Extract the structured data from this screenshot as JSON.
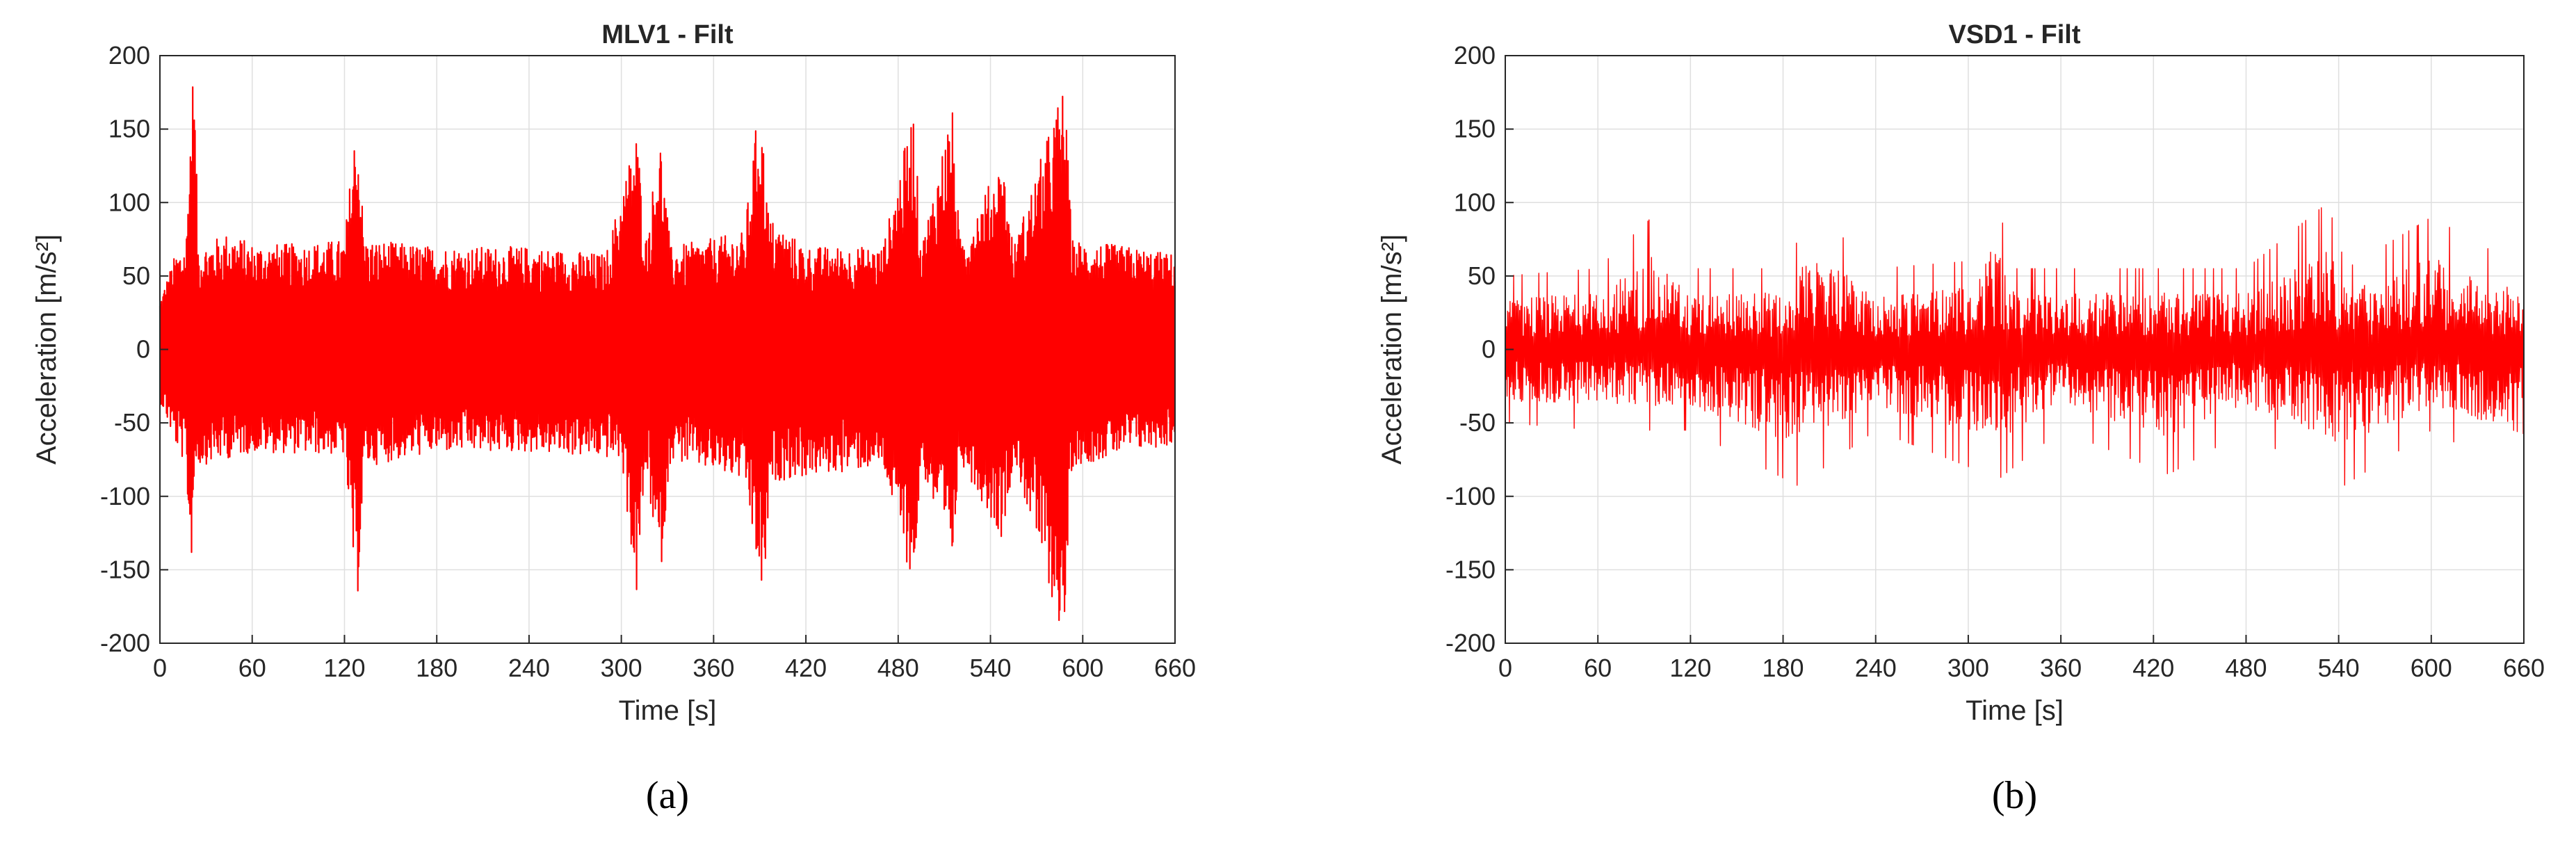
{
  "chart_data": [
    {
      "type": "line",
      "title": "MLV1 - Filt",
      "xlabel": "Time [s]",
      "ylabel": "Acceleration [m/s²]",
      "caption": "(a)",
      "xlim": [
        0,
        660
      ],
      "ylim": [
        -200,
        200
      ],
      "xticks": [
        "0",
        "60",
        "120",
        "180",
        "240",
        "300",
        "360",
        "420",
        "480",
        "540",
        "600",
        "660"
      ],
      "yticks": [
        "200",
        "150",
        "100",
        "50",
        "0",
        "-50",
        "-100",
        "-150",
        "-200"
      ],
      "grid": true,
      "color": "#ff0000",
      "series": [
        {
          "envelope_upper": [
            {
              "x": 0,
              "y": 35
            },
            {
              "x": 10,
              "y": 65
            },
            {
              "x": 17,
              "y": 75
            },
            {
              "x": 20,
              "y": 160
            },
            {
              "x": 22,
              "y": 200
            },
            {
              "x": 25,
              "y": 70
            },
            {
              "x": 45,
              "y": 80
            },
            {
              "x": 60,
              "y": 72
            },
            {
              "x": 90,
              "y": 72
            },
            {
              "x": 120,
              "y": 75
            },
            {
              "x": 128,
              "y": 163
            },
            {
              "x": 133,
              "y": 75
            },
            {
              "x": 180,
              "y": 70
            },
            {
              "x": 240,
              "y": 70
            },
            {
              "x": 290,
              "y": 65
            },
            {
              "x": 310,
              "y": 150
            },
            {
              "x": 316,
              "y": 75
            },
            {
              "x": 325,
              "y": 148
            },
            {
              "x": 332,
              "y": 70
            },
            {
              "x": 380,
              "y": 80
            },
            {
              "x": 390,
              "y": 175
            },
            {
              "x": 396,
              "y": 90
            },
            {
              "x": 420,
              "y": 70
            },
            {
              "x": 470,
              "y": 70
            },
            {
              "x": 490,
              "y": 165
            },
            {
              "x": 495,
              "y": 70
            },
            {
              "x": 515,
              "y": 168
            },
            {
              "x": 520,
              "y": 75
            },
            {
              "x": 548,
              "y": 130
            },
            {
              "x": 555,
              "y": 70
            },
            {
              "x": 588,
              "y": 182
            },
            {
              "x": 593,
              "y": 75
            },
            {
              "x": 630,
              "y": 70
            },
            {
              "x": 660,
              "y": 65
            }
          ],
          "envelope_lower": [
            {
              "x": 0,
              "y": -35
            },
            {
              "x": 10,
              "y": -65
            },
            {
              "x": 17,
              "y": -80
            },
            {
              "x": 20,
              "y": -155
            },
            {
              "x": 23,
              "y": -80
            },
            {
              "x": 60,
              "y": -70
            },
            {
              "x": 120,
              "y": -72
            },
            {
              "x": 128,
              "y": -180
            },
            {
              "x": 133,
              "y": -80
            },
            {
              "x": 180,
              "y": -70
            },
            {
              "x": 240,
              "y": -70
            },
            {
              "x": 300,
              "y": -75
            },
            {
              "x": 310,
              "y": -170
            },
            {
              "x": 316,
              "y": -80
            },
            {
              "x": 325,
              "y": -160
            },
            {
              "x": 332,
              "y": -75
            },
            {
              "x": 380,
              "y": -90
            },
            {
              "x": 392,
              "y": -175
            },
            {
              "x": 398,
              "y": -90
            },
            {
              "x": 470,
              "y": -80
            },
            {
              "x": 490,
              "y": -163
            },
            {
              "x": 495,
              "y": -80
            },
            {
              "x": 515,
              "y": -150
            },
            {
              "x": 520,
              "y": -75
            },
            {
              "x": 548,
              "y": -130
            },
            {
              "x": 555,
              "y": -75
            },
            {
              "x": 588,
              "y": -200
            },
            {
              "x": 593,
              "y": -80
            },
            {
              "x": 630,
              "y": -70
            },
            {
              "x": 660,
              "y": -65
            }
          ]
        }
      ]
    },
    {
      "type": "line",
      "title": "VSD1 - Filt",
      "xlabel": "Time [s]",
      "ylabel": "Acceleration [m/s²]",
      "caption": "(b)",
      "xlim": [
        0,
        660
      ],
      "ylim": [
        -200,
        200
      ],
      "xticks": [
        "0",
        "60",
        "120",
        "180",
        "240",
        "300",
        "360",
        "420",
        "480",
        "540",
        "600",
        "660"
      ],
      "yticks": [
        "200",
        "150",
        "100",
        "50",
        "0",
        "-50",
        "-100",
        "-150",
        "-200"
      ],
      "grid": true,
      "color": "#ff0000",
      "series": [
        {
          "envelope_upper": [
            {
              "x": 0,
              "y": 50
            },
            {
              "x": 60,
              "y": 55
            },
            {
              "x": 95,
              "y": 90
            },
            {
              "x": 120,
              "y": 55
            },
            {
              "x": 180,
              "y": 55
            },
            {
              "x": 200,
              "y": 95
            },
            {
              "x": 240,
              "y": 55
            },
            {
              "x": 300,
              "y": 60
            },
            {
              "x": 318,
              "y": 103
            },
            {
              "x": 330,
              "y": 55
            },
            {
              "x": 420,
              "y": 55
            },
            {
              "x": 480,
              "y": 55
            },
            {
              "x": 533,
              "y": 100
            },
            {
              "x": 545,
              "y": 55
            },
            {
              "x": 600,
              "y": 90
            },
            {
              "x": 660,
              "y": 55
            }
          ],
          "envelope_lower": [
            {
              "x": 0,
              "y": -50
            },
            {
              "x": 60,
              "y": -55
            },
            {
              "x": 120,
              "y": -55
            },
            {
              "x": 190,
              "y": -93
            },
            {
              "x": 240,
              "y": -55
            },
            {
              "x": 320,
              "y": -88
            },
            {
              "x": 360,
              "y": -55
            },
            {
              "x": 430,
              "y": -85
            },
            {
              "x": 480,
              "y": -55
            },
            {
              "x": 540,
              "y": -95
            },
            {
              "x": 600,
              "y": -55
            },
            {
              "x": 655,
              "y": -85
            },
            {
              "x": 660,
              "y": -55
            }
          ]
        }
      ]
    }
  ]
}
